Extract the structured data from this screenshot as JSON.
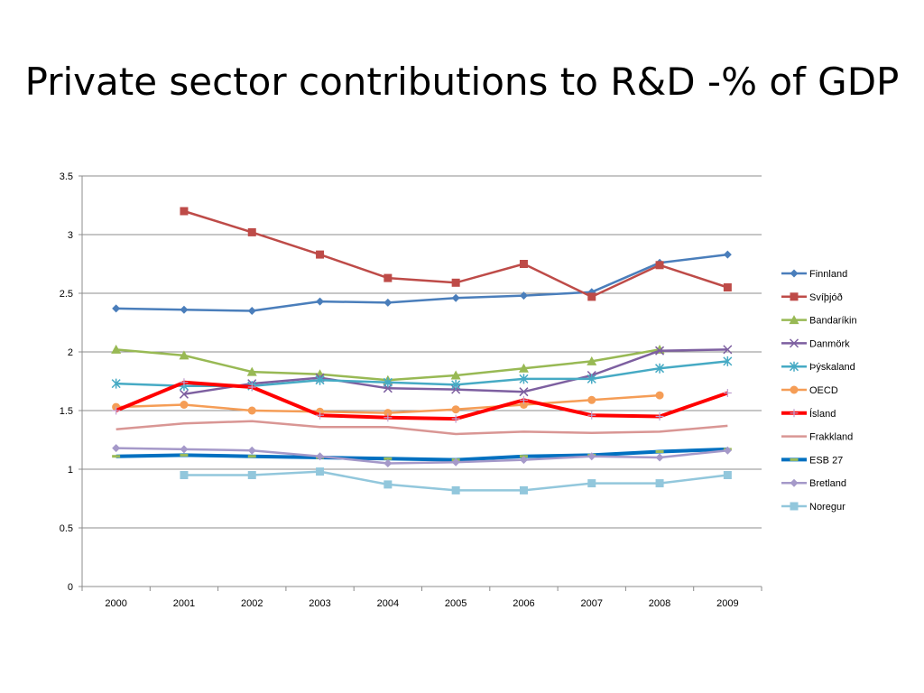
{
  "slide": {
    "title": "Private sector contributions to R&D -% of GDP"
  },
  "chart_data": {
    "type": "line",
    "title": "",
    "xlabel": "",
    "ylabel": "",
    "categories": [
      "2000",
      "2001",
      "2002",
      "2003",
      "2004",
      "2005",
      "2006",
      "2007",
      "2008",
      "2009"
    ],
    "ylim": [
      0,
      3.5
    ],
    "yticks": [
      0,
      0.5,
      1,
      1.5,
      2,
      2.5,
      3,
      3.5
    ],
    "ytick_labels": [
      "0",
      "0.5",
      "1",
      "1.5",
      "2",
      "2.5",
      "3",
      "3.5"
    ],
    "grid": true,
    "legend": "right",
    "series": [
      {
        "name": "Finnland",
        "color": "#4a7ebb",
        "marker": "diamond",
        "values": [
          2.37,
          2.36,
          2.35,
          2.43,
          2.42,
          2.46,
          2.48,
          2.51,
          2.76,
          2.83
        ]
      },
      {
        "name": "Svíþjóð",
        "color": "#be4b48",
        "marker": "square",
        "values": [
          null,
          3.2,
          3.02,
          2.83,
          2.63,
          2.59,
          2.75,
          2.47,
          2.74,
          2.55
        ]
      },
      {
        "name": "Bandaríkin",
        "color": "#98b954",
        "marker": "triangle",
        "values": [
          2.02,
          1.97,
          1.83,
          1.81,
          1.76,
          1.8,
          1.86,
          1.92,
          2.02,
          null
        ]
      },
      {
        "name": "Danmörk",
        "color": "#7d5fa0",
        "marker": "x",
        "values": [
          null,
          1.64,
          1.73,
          1.78,
          1.69,
          1.68,
          1.66,
          1.8,
          2.01,
          2.02
        ]
      },
      {
        "name": "Þýskaland",
        "color": "#46aac4",
        "marker": "star",
        "values": [
          1.73,
          1.71,
          1.71,
          1.76,
          1.74,
          1.72,
          1.77,
          1.77,
          1.86,
          1.92
        ]
      },
      {
        "name": "OECD",
        "color": "#f59d56",
        "marker": "circle",
        "values": [
          1.53,
          1.55,
          1.5,
          1.49,
          1.48,
          1.51,
          1.55,
          1.59,
          1.63,
          null
        ]
      },
      {
        "name": "Ísland",
        "color": "#ff0000",
        "marker": "plus",
        "values": [
          1.5,
          1.74,
          1.7,
          1.46,
          1.44,
          1.43,
          1.59,
          1.46,
          1.45,
          1.65
        ]
      },
      {
        "name": "Frakkland",
        "color": "#d99694",
        "marker": "none",
        "values": [
          1.34,
          1.39,
          1.41,
          1.36,
          1.36,
          1.3,
          1.32,
          1.31,
          1.32,
          1.37
        ]
      },
      {
        "name": "ESB 27",
        "color": "#0070c0",
        "marker": "dash",
        "values": [
          1.11,
          1.12,
          1.11,
          1.1,
          1.09,
          1.08,
          1.11,
          1.12,
          1.15,
          1.17
        ]
      },
      {
        "name": "Bretland",
        "color": "#a599c9",
        "marker": "diamond",
        "values": [
          1.18,
          1.17,
          1.16,
          1.11,
          1.05,
          1.06,
          1.08,
          1.11,
          1.1,
          1.16
        ]
      },
      {
        "name": "Noregur",
        "color": "#92c7dc",
        "marker": "square",
        "values": [
          null,
          0.95,
          0.95,
          0.98,
          0.87,
          0.82,
          0.82,
          0.88,
          0.88,
          0.95
        ]
      }
    ]
  }
}
